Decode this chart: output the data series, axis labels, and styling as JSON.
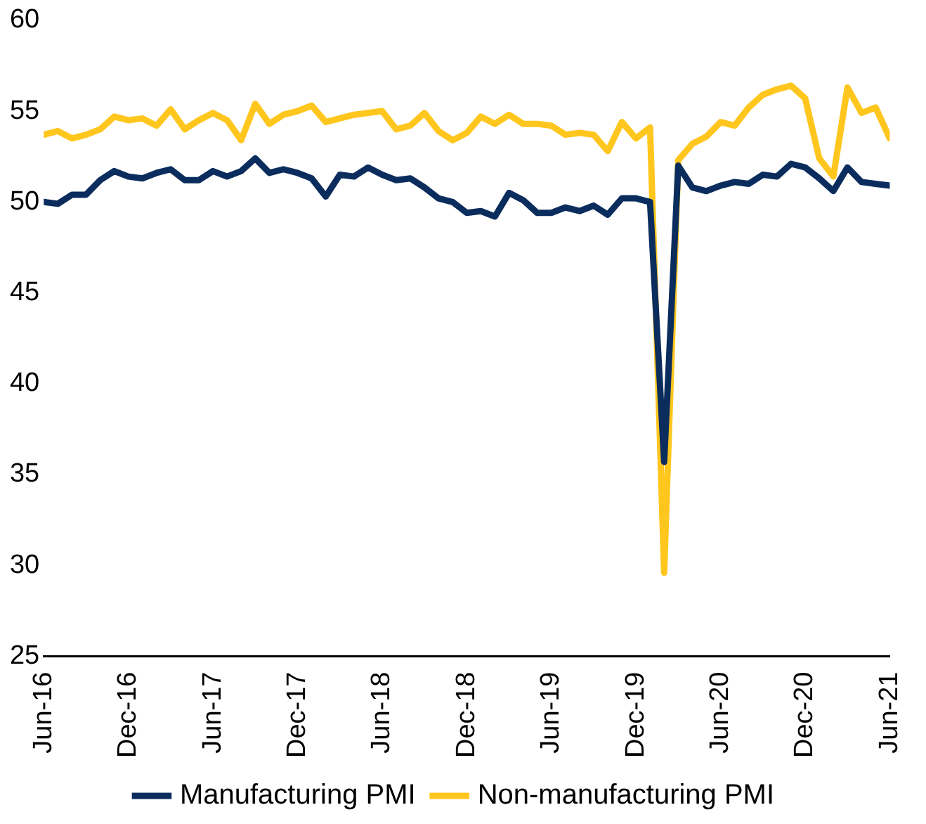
{
  "chart_data": {
    "type": "line",
    "x": [
      "2016-06",
      "2016-07",
      "2016-08",
      "2016-09",
      "2016-10",
      "2016-11",
      "2016-12",
      "2017-01",
      "2017-02",
      "2017-03",
      "2017-04",
      "2017-05",
      "2017-06",
      "2017-07",
      "2017-08",
      "2017-09",
      "2017-10",
      "2017-11",
      "2017-12",
      "2018-01",
      "2018-02",
      "2018-03",
      "2018-04",
      "2018-05",
      "2018-06",
      "2018-07",
      "2018-08",
      "2018-09",
      "2018-10",
      "2018-11",
      "2018-12",
      "2019-01",
      "2019-02",
      "2019-03",
      "2019-04",
      "2019-05",
      "2019-06",
      "2019-07",
      "2019-08",
      "2019-09",
      "2019-10",
      "2019-11",
      "2019-12",
      "2020-01",
      "2020-02",
      "2020-03",
      "2020-04",
      "2020-05",
      "2020-06",
      "2020-07",
      "2020-08",
      "2020-09",
      "2020-10",
      "2020-11",
      "2020-12",
      "2021-01",
      "2021-02",
      "2021-03",
      "2021-04",
      "2021-05",
      "2021-06"
    ],
    "series": [
      {
        "name": "Manufacturing PMI",
        "color": "#0b2d5e",
        "values": [
          50.0,
          49.9,
          50.4,
          50.4,
          51.2,
          51.7,
          51.4,
          51.3,
          51.6,
          51.8,
          51.2,
          51.2,
          51.7,
          51.4,
          51.7,
          52.4,
          51.6,
          51.8,
          51.6,
          51.3,
          50.3,
          51.5,
          51.4,
          51.9,
          51.5,
          51.2,
          51.3,
          50.8,
          50.2,
          50.0,
          49.4,
          49.5,
          49.2,
          50.5,
          50.1,
          49.4,
          49.4,
          49.7,
          49.5,
          49.8,
          49.3,
          50.2,
          50.2,
          50.0,
          35.7,
          52.0,
          50.8,
          50.6,
          50.9,
          51.1,
          51.0,
          51.5,
          51.4,
          52.1,
          51.9,
          51.3,
          50.6,
          51.9,
          51.1,
          51.0,
          50.9
        ]
      },
      {
        "name": "Non-manufacturing PMI",
        "color": "#ffc61e",
        "values": [
          53.7,
          53.9,
          53.5,
          53.7,
          54.0,
          54.7,
          54.5,
          54.6,
          54.2,
          55.1,
          54.0,
          54.5,
          54.9,
          54.5,
          53.4,
          55.4,
          54.3,
          54.8,
          55.0,
          55.3,
          54.4,
          54.6,
          54.8,
          54.9,
          55.0,
          54.0,
          54.2,
          54.9,
          53.9,
          53.4,
          53.8,
          54.7,
          54.3,
          54.8,
          54.3,
          54.3,
          54.2,
          53.7,
          53.8,
          53.7,
          52.8,
          54.4,
          53.5,
          54.1,
          29.6,
          52.3,
          53.2,
          53.6,
          54.4,
          54.2,
          55.2,
          55.9,
          56.2,
          56.4,
          55.7,
          52.4,
          51.4,
          56.3,
          54.9,
          55.2,
          53.5
        ]
      }
    ],
    "xlim": [
      "2016-06",
      "2021-06"
    ],
    "xticks": [
      {
        "value": "2016-06",
        "label": "Jun-16"
      },
      {
        "value": "2016-12",
        "label": "Dec-16"
      },
      {
        "value": "2017-06",
        "label": "Jun-17"
      },
      {
        "value": "2017-12",
        "label": "Dec-17"
      },
      {
        "value": "2018-06",
        "label": "Jun-18"
      },
      {
        "value": "2018-12",
        "label": "Dec-18"
      },
      {
        "value": "2019-06",
        "label": "Jun-19"
      },
      {
        "value": "2019-12",
        "label": "Dec-19"
      },
      {
        "value": "2020-06",
        "label": "Jun-20"
      },
      {
        "value": "2020-12",
        "label": "Dec-20"
      },
      {
        "value": "2021-06",
        "label": "Jun-21"
      }
    ],
    "ylim": [
      25,
      60
    ],
    "yticks": [
      25,
      30,
      35,
      40,
      45,
      50,
      55,
      60
    ],
    "grid": false,
    "legend": "bottom",
    "marker": "none",
    "line_style": "solid"
  }
}
